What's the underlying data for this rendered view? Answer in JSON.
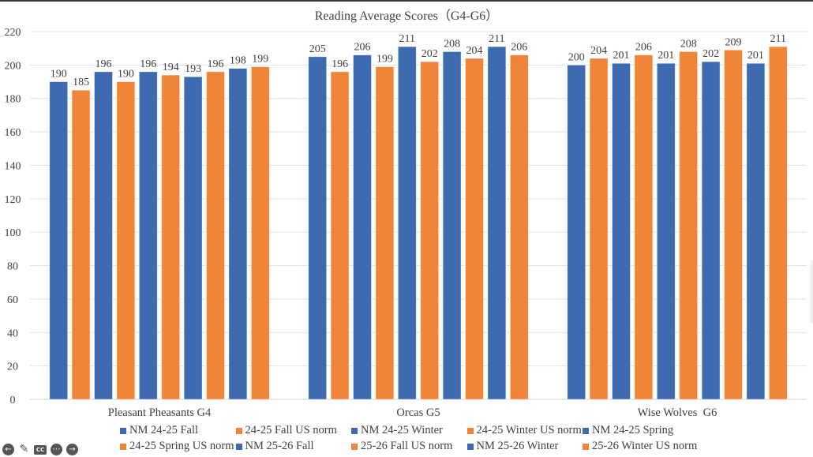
{
  "chart_data": {
    "type": "bar",
    "title": "Reading Average Scores（G4-G6）",
    "xlabel": "",
    "ylabel": "",
    "ylim": [
      0,
      220
    ],
    "yticks": [
      0,
      20,
      40,
      60,
      80,
      100,
      120,
      140,
      160,
      180,
      200,
      220
    ],
    "ytick_labels": [
      "0",
      "20",
      "40",
      "60",
      "80",
      "100",
      "120",
      "140",
      "160",
      "180",
      "200",
      "220"
    ],
    "grid": true,
    "legend_position": "bottom",
    "categories": [
      "Pleasant Pheasants G4",
      "Orcas G5",
      "Wise Wolves  G6"
    ],
    "series": [
      {
        "name": "NM 24-25 Fall",
        "color": "#3E6BB0",
        "values": [
          190,
          205,
          200
        ]
      },
      {
        "name": "24-25 Fall US norm",
        "color": "#F0853A",
        "values": [
          185,
          196,
          204
        ]
      },
      {
        "name": "NM 24-25 Winter",
        "color": "#3E6BB0",
        "values": [
          196,
          206,
          201
        ]
      },
      {
        "name": "24-25 Winter US norm",
        "color": "#F0853A",
        "values": [
          190,
          199,
          206
        ]
      },
      {
        "name": "NM 24-25 Spring",
        "color": "#3E6BB0",
        "values": [
          196,
          211,
          201
        ]
      },
      {
        "name": "24-25 Spring US norm",
        "color": "#F0853A",
        "values": [
          194,
          202,
          208
        ]
      },
      {
        "name": "NM 25-26 Fall",
        "color": "#3E6BB0",
        "values": [
          193,
          208,
          202
        ]
      },
      {
        "name": "25-26 Fall US norm",
        "color": "#F0853A",
        "values": [
          196,
          204,
          209
        ]
      },
      {
        "name": "NM 25-26 Winter",
        "color": "#3E6BB0",
        "values": [
          198,
          211,
          201
        ]
      },
      {
        "name": "25-26 Winter US norm",
        "color": "#F0853A",
        "values": [
          199,
          206,
          211
        ]
      }
    ]
  },
  "controls": {
    "prev_icon": "arrow-left-circle-icon",
    "pen_icon": "pencil-icon",
    "cc_icon": "closed-captions-icon",
    "cc_label": "CC",
    "more_icon": "more-circle-icon",
    "next_icon": "arrow-right-circle-icon"
  }
}
